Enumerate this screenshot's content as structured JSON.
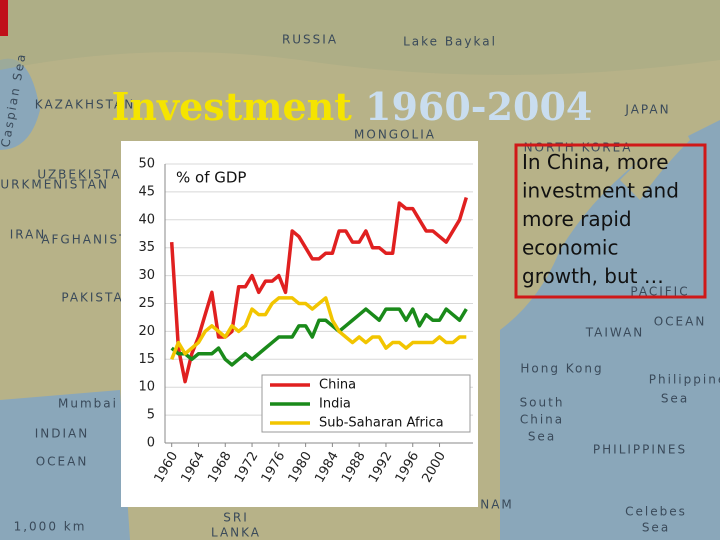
{
  "slide": {
    "title": [
      "Investment",
      "1960-2004"
    ],
    "callout": "In China, more investment and more rapid economic growth, but …"
  },
  "map_labels": [
    "RUSSIA",
    "Lake Baykal",
    "KAZAKHSTAN",
    "MONGOLIA",
    "JAPAN",
    "NORTH KOREA",
    "UZBEKISTAN",
    "TURKMENISTAN",
    "Caspian Sea",
    "IRAN",
    "AFGHANISTAN",
    "PAKISTAN",
    "Mumbai",
    "INDIAN",
    "OCEAN",
    "TAIWAN",
    "PACIFIC",
    "OCEAN",
    "Hong Kong",
    "Philippine",
    "Sea",
    "South",
    "China",
    "Sea",
    "PHILIPPINES",
    "NAM",
    "SRI",
    "LANKA",
    "Celebes",
    "Sea",
    "1,000 km"
  ],
  "chart_data": {
    "type": "line",
    "ylabel": "% of GDP",
    "x": [
      1960,
      1961,
      1962,
      1963,
      1964,
      1965,
      1966,
      1967,
      1968,
      1969,
      1970,
      1971,
      1972,
      1973,
      1974,
      1975,
      1976,
      1977,
      1978,
      1979,
      1980,
      1981,
      1982,
      1983,
      1984,
      1985,
      1986,
      1987,
      1988,
      1989,
      1990,
      1991,
      1992,
      1993,
      1994,
      1995,
      1996,
      1997,
      1998,
      1999,
      2000,
      2001,
      2002,
      2003,
      2004
    ],
    "series": [
      {
        "name": "China",
        "color": "#e02020",
        "values": [
          36,
          17,
          11,
          16,
          19,
          23,
          27,
          19,
          19,
          20,
          28,
          28,
          30,
          27,
          29,
          29,
          30,
          27,
          38,
          37,
          35,
          33,
          33,
          34,
          34,
          38,
          38,
          36,
          36,
          38,
          35,
          35,
          34,
          34,
          43,
          42,
          42,
          40,
          38,
          38,
          37,
          36,
          38,
          40,
          44
        ]
      },
      {
        "name": "India",
        "color": "#1a8a1a",
        "values": [
          17,
          16,
          16,
          15,
          16,
          16,
          16,
          17,
          15,
          14,
          15,
          16,
          15,
          16,
          17,
          18,
          19,
          19,
          19,
          21,
          21,
          19,
          22,
          22,
          21,
          20,
          21,
          22,
          23,
          24,
          23,
          22,
          24,
          24,
          24,
          22,
          24,
          21,
          23,
          22,
          22,
          24,
          23,
          22,
          24
        ]
      },
      {
        "name": "Sub-Saharan Africa",
        "color": "#f2c500",
        "values": [
          15,
          18,
          16,
          17,
          18,
          20,
          21,
          20,
          19,
          21,
          20,
          21,
          24,
          23,
          23,
          25,
          26,
          26,
          26,
          25,
          25,
          24,
          25,
          26,
          22,
          20,
          19,
          18,
          19,
          18,
          19,
          19,
          17,
          18,
          18,
          17,
          18,
          18,
          18,
          18,
          19,
          18,
          18,
          19,
          19
        ]
      }
    ],
    "xlim": [
      1959,
      2005
    ],
    "xticks": [
      1960,
      1964,
      1968,
      1972,
      1976,
      1980,
      1984,
      1988,
      1992,
      1996,
      2000
    ],
    "ylim": [
      0,
      50
    ],
    "yticks": [
      0,
      5,
      10,
      15,
      20,
      25,
      30,
      35,
      40,
      45,
      50
    ],
    "grid": true
  }
}
